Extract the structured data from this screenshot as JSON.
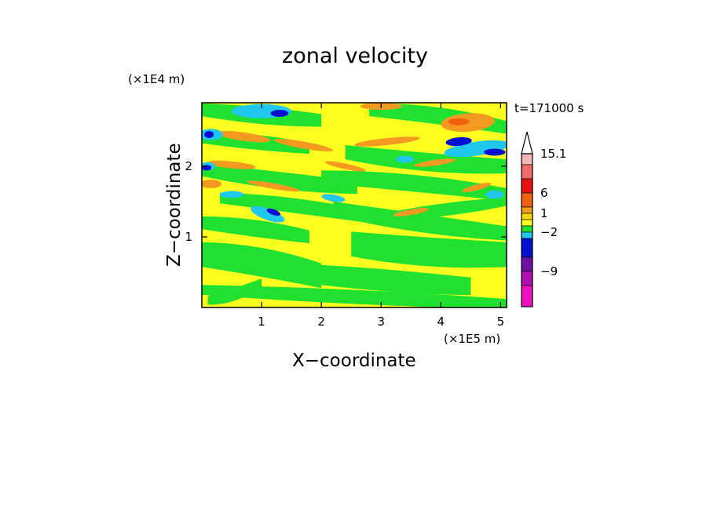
{
  "chart_data": {
    "type": "heatmap",
    "title": "zonal velocity",
    "xlabel": "X−coordinate",
    "ylabel": "Z−coordinate",
    "x_unit": "(×1E5 m)",
    "y_unit": "(×1E4 m)",
    "time_label": "t=171000 s",
    "xlim": [
      0,
      5.1
    ],
    "ylim": [
      0,
      2.9
    ],
    "x_ticks": [
      1,
      2,
      3,
      4,
      5
    ],
    "y_ticks": [
      1,
      2
    ],
    "x_tick_labels": [
      "1",
      "2",
      "3",
      "4",
      "5"
    ],
    "y_tick_labels": [
      "1",
      "2"
    ],
    "colorbar": {
      "labels": [
        "15.1",
        "6",
        "1",
        "−2",
        "−9"
      ],
      "levels_top_to_bottom": [
        15.1,
        12,
        9,
        6,
        3,
        1,
        0,
        -1,
        -2,
        -5,
        -9,
        -12
      ],
      "colors_top_to_bottom": [
        "#f7b6b6",
        "#f26b6b",
        "#e81010",
        "#f06010",
        "#f59a20",
        "#f0d800",
        "#ffff20",
        "#20e030",
        "#20c8f0",
        "#0010d0",
        "#7010a0",
        "#b010b0",
        "#f010c0"
      ]
    },
    "field_description": "Horizontal wind field: yellow (0 to 1) and green (−1 to 0) layered bands dominate; cyan and blue negative patches near top-left and top-right; orange positive streaks in upper layers; red core near x=4.3, z=2.6."
  }
}
